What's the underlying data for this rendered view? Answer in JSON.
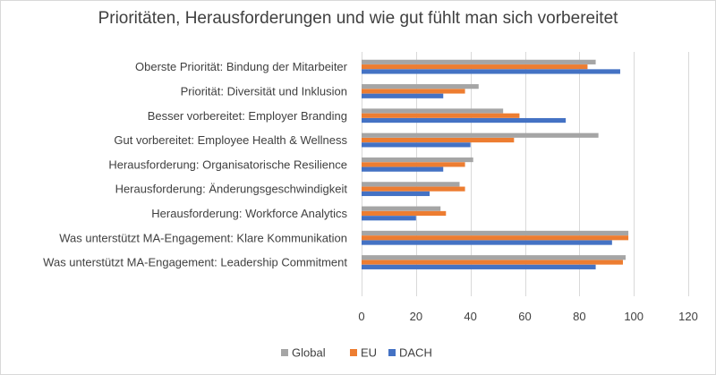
{
  "chart_data": {
    "type": "bar",
    "orientation": "horizontal",
    "title": "Prioritäten, Herausforderungen und wie gut fühlt man sich vorbereitet",
    "categories": [
      "Oberste Priorität: Bindung der Mitarbeiter",
      "Priorität: Diversität und Inklusion",
      "Besser vorbereitet: Employer Branding",
      "Gut vorbereitet: Employee Health & Wellness",
      "Herausforderung: Organisatorische Resilience",
      "Herausforderung: Änderungsgeschwindigkeit",
      "Herausforderung: Workforce Analytics",
      "Was unterstützt MA-Engagement: Klare Kommunikation",
      "Was unterstützt MA-Engagement: Leadership Commitment"
    ],
    "series": [
      {
        "name": "Global",
        "color": "#a5a5a5",
        "values": [
          86,
          43,
          52,
          87,
          41,
          36,
          29,
          98,
          97
        ]
      },
      {
        "name": "EU",
        "color": "#ed7d31",
        "values": [
          83,
          38,
          58,
          56,
          38,
          38,
          31,
          98,
          96
        ]
      },
      {
        "name": "DACH",
        "color": "#4472c4",
        "values": [
          95,
          30,
          75,
          40,
          30,
          25,
          20,
          92,
          86
        ]
      }
    ],
    "xlim": [
      0,
      120
    ],
    "xticks": [
      0,
      20,
      40,
      60,
      80,
      100,
      120
    ],
    "xlabel": "",
    "ylabel": "",
    "grid": "vertical",
    "legend": "bottom"
  }
}
